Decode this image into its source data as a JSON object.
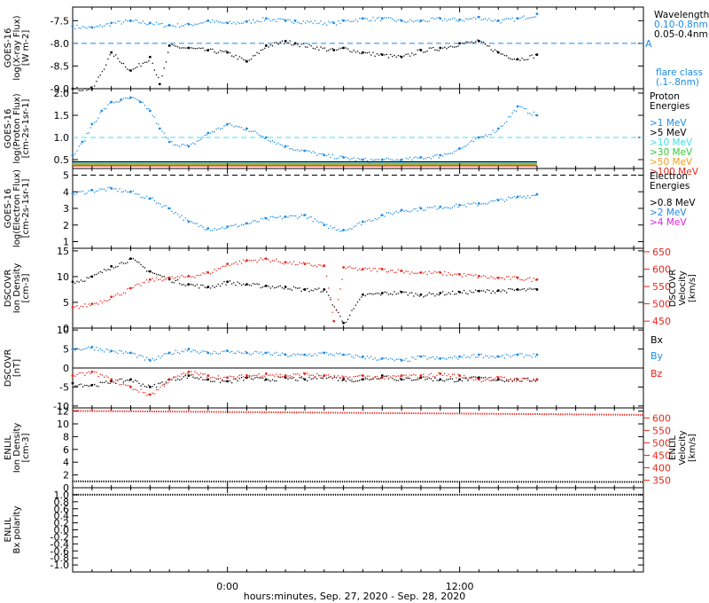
{
  "colors": {
    "black": "#000000",
    "blue": "#1c8be6",
    "lightblue": "#2bb3f0",
    "cyan": "#40e0e8",
    "green": "#37c837",
    "orange": "#f0a020",
    "red": "#e8261c",
    "magenta": "#e020e0",
    "dashed_ref": "#1c8be6"
  },
  "footer": {
    "xlabel": "hours:minutes, Sep. 27, 2020 - Sep. 28, 2020"
  },
  "x_axis": {
    "ticks": [
      "0:00",
      "12:00"
    ],
    "tick_hours": [
      0,
      12
    ],
    "range_hours": [
      -8.0,
      21.5
    ]
  },
  "chart_data": [
    {
      "id": "xray",
      "type": "scatter",
      "ylabel_lines": [
        "GOES-16",
        "log(X-ray Flux)",
        "[W m-2]"
      ],
      "ylim": [
        -9.0,
        -7.2
      ],
      "yticks": [
        -9.0,
        -8.5,
        -8.0,
        -7.5
      ],
      "ytick_labels": [
        "-9.0",
        "-8.5",
        "-8.0",
        "-7.5"
      ],
      "reference_line": {
        "y": -8.0,
        "label": "A"
      },
      "legend": {
        "title": "Wavelength",
        "items": [
          {
            "text": "0.10-0.8nm",
            "color": "blue"
          },
          {
            "text": "0.05-0.4nm",
            "color": "black"
          }
        ],
        "extra": [
          "flare class",
          "(.1-.8nm)"
        ]
      },
      "series": [
        {
          "name": "0.10-0.8nm",
          "color": "blue",
          "style": "dots",
          "x": [
            -8,
            -7,
            -6,
            -5,
            -4,
            -3,
            -2,
            -1,
            0,
            1,
            2,
            3,
            3.5,
            5.5,
            6,
            7,
            8,
            9,
            10,
            11,
            12,
            13,
            14,
            15,
            16
          ],
          "y": [
            -7.62,
            -7.65,
            -7.55,
            -7.5,
            -7.55,
            -7.6,
            -7.58,
            -7.5,
            -7.55,
            -7.52,
            -7.45,
            -7.5,
            -7.5,
            -7.55,
            -7.5,
            -7.45,
            -7.45,
            -7.5,
            -7.5,
            -7.45,
            -7.48,
            -7.42,
            -7.5,
            -7.45,
            -7.35
          ]
        },
        {
          "name": "0.05-0.4nm",
          "color": "black",
          "style": "dots",
          "x": [
            -8,
            -7,
            -6,
            -5,
            -4,
            -3.5,
            -3,
            -2,
            -1,
            0,
            1,
            2,
            3,
            3.5,
            5.5,
            6,
            7,
            8,
            9,
            10,
            11,
            12,
            13,
            14,
            15,
            16
          ],
          "y": [
            -9.0,
            -9.0,
            -8.2,
            -8.6,
            -8.3,
            -8.9,
            -8.05,
            -8.1,
            -8.15,
            -8.2,
            -8.4,
            -8.05,
            -7.95,
            -8.0,
            -8.15,
            -8.1,
            -8.2,
            -8.25,
            -8.3,
            -8.15,
            -8.1,
            -8.0,
            -7.95,
            -8.2,
            -8.35,
            -8.25
          ]
        }
      ]
    },
    {
      "id": "proton",
      "type": "scatter",
      "ylabel_lines": [
        "GOES-16",
        "log(Proton Flux)",
        "[cm-2s-1sr-1]"
      ],
      "ylim": [
        0.3,
        2.1
      ],
      "yticks": [
        0.5,
        1.0,
        1.5,
        2.0
      ],
      "ytick_labels": [
        "0.5",
        "1.0",
        "1.5",
        "2.0"
      ],
      "reference_line": {
        "y": 1.0,
        "label": ""
      },
      "legend": {
        "title_lines": [
          "Proton",
          "Energies"
        ],
        "items": [
          {
            "text": ">1 MeV",
            "color": "blue"
          },
          {
            "text": ">5 MeV",
            "color": "black"
          },
          {
            "text": ">10 MeV",
            "color": "cyan"
          },
          {
            "text": ">30 MeV",
            "color": "green"
          },
          {
            "text": ">50 MeV",
            "color": "orange"
          },
          {
            "text": ">100 MeV",
            "color": "red"
          }
        ]
      },
      "series": [
        {
          "name": ">1 MeV",
          "color": "blue",
          "style": "dots",
          "x": [
            -8,
            -7.5,
            -7,
            -6.5,
            -6,
            -5.5,
            -5,
            -4.5,
            -4,
            -3.5,
            -3,
            -2,
            -1,
            0,
            1,
            2,
            3,
            4,
            5,
            6,
            7,
            8,
            9,
            10,
            11,
            12,
            13,
            14,
            15,
            16
          ],
          "y": [
            0.6,
            0.9,
            1.3,
            1.6,
            1.8,
            1.85,
            1.9,
            1.8,
            1.6,
            1.2,
            0.9,
            0.8,
            1.1,
            1.3,
            1.2,
            1.0,
            0.8,
            0.7,
            0.6,
            0.55,
            0.5,
            0.5,
            0.5,
            0.55,
            0.6,
            0.75,
            1.0,
            1.2,
            1.7,
            1.5
          ]
        },
        {
          "name": ">5 MeV",
          "color": "black",
          "style": "line",
          "x": [
            -8,
            16
          ],
          "y": [
            0.45,
            0.45
          ]
        },
        {
          "name": ">10 MeV",
          "color": "cyan",
          "style": "line",
          "x": [
            -8,
            16
          ],
          "y": [
            0.42,
            0.42
          ]
        },
        {
          "name": ">30 MeV",
          "color": "green",
          "style": "line",
          "x": [
            -8,
            16
          ],
          "y": [
            0.4,
            0.4
          ]
        },
        {
          "name": ">50 MeV",
          "color": "orange",
          "style": "line",
          "x": [
            -8,
            16
          ],
          "y": [
            0.38,
            0.38
          ]
        },
        {
          "name": ">100 MeV",
          "color": "red",
          "style": "line",
          "x": [
            -8,
            16
          ],
          "y": [
            0.36,
            0.36
          ]
        }
      ]
    },
    {
      "id": "electron",
      "type": "scatter",
      "ylabel_lines": [
        "GOES-16",
        "log(Electron Flux)",
        "[cm-2s-1sr-1]"
      ],
      "ylim": [
        0.6,
        5.4
      ],
      "yticks": [
        1,
        2,
        3,
        4,
        5
      ],
      "ytick_labels": [
        "1",
        "2",
        "3",
        "4",
        "5"
      ],
      "reference_line": {
        "y": 5.0,
        "label": ""
      },
      "legend": {
        "title_lines": [
          "Electron",
          "Energies"
        ],
        "items": [
          {
            "text": ">0.8 MeV",
            "color": "black"
          },
          {
            "text": ">2 MeV",
            "color": "blue"
          },
          {
            "text": ">4 MeV",
            "color": "magenta"
          }
        ]
      },
      "series": [
        {
          "name": ">2 MeV",
          "color": "blue",
          "style": "dots",
          "x": [
            -8,
            -7,
            -6,
            -5,
            -4,
            -3,
            -2,
            -1,
            0,
            1,
            2,
            3,
            4,
            5,
            6,
            7,
            8,
            9,
            10,
            11,
            12,
            13,
            14,
            15,
            16
          ],
          "y": [
            3.9,
            4.1,
            4.2,
            4.0,
            3.6,
            3.0,
            2.2,
            1.8,
            1.9,
            2.1,
            2.4,
            2.5,
            2.6,
            2.0,
            1.7,
            2.2,
            2.6,
            2.9,
            3.0,
            3.1,
            3.2,
            3.3,
            3.5,
            3.7,
            3.85
          ]
        }
      ]
    },
    {
      "id": "dscovr_density",
      "type": "scatter",
      "ylabel_lines": [
        "DSCOVR",
        "Ion Density",
        "[cm-3]"
      ],
      "ylim": [
        0,
        15.5
      ],
      "yticks": [
        0,
        5,
        10,
        15
      ],
      "ytick_labels": [
        "0",
        "5",
        "10",
        "15"
      ],
      "right_axis": {
        "label_lines": [
          "DSCOVR",
          "Velocity",
          "[km/s]"
        ],
        "ylim": [
          430,
          660
        ],
        "yticks": [
          450,
          500,
          550,
          600,
          650
        ],
        "ytick_labels": [
          "450",
          "500",
          "550",
          "600",
          "650"
        ]
      },
      "series": [
        {
          "name": "Ion Density",
          "color": "black",
          "style": "dots",
          "x": [
            -8,
            -7,
            -6,
            -5,
            -4,
            -3,
            -2,
            -1,
            0,
            1,
            2,
            3,
            4,
            5,
            6,
            7,
            8,
            9,
            10,
            11,
            12,
            13,
            14,
            15,
            16
          ],
          "y": [
            9,
            10,
            12,
            13.5,
            11,
            9.5,
            8.5,
            8,
            9,
            8.5,
            8.2,
            8,
            7.5,
            7.5,
            1,
            6.5,
            6.8,
            7,
            6.5,
            6.8,
            7,
            7.2,
            7.3,
            7.5,
            7.5
          ]
        },
        {
          "name": "Velocity",
          "color": "red",
          "style": "dots",
          "axis": "right",
          "x": [
            -8,
            -7,
            -6,
            -5,
            -4,
            -3,
            -2,
            -1,
            0,
            1,
            2,
            3,
            4,
            5,
            5.5,
            6,
            7,
            8,
            9,
            10,
            11,
            12,
            13,
            14,
            15,
            16
          ],
          "y": [
            490,
            500,
            520,
            545,
            570,
            575,
            580,
            590,
            615,
            625,
            630,
            620,
            615,
            610,
            450,
            605,
            600,
            600,
            595,
            590,
            590,
            585,
            580,
            575,
            575,
            570
          ]
        }
      ]
    },
    {
      "id": "dscovr_b",
      "type": "scatter",
      "ylabel_lines": [
        "DSCOVR",
        "[nT]"
      ],
      "ylim": [
        -10.5,
        10.5
      ],
      "yticks": [
        -10,
        -5,
        0,
        5,
        10
      ],
      "ytick_labels": [
        "-10",
        "-5",
        "0",
        "5",
        "10"
      ],
      "zero_line": true,
      "legend_labels": [
        {
          "text": "Bx",
          "color": "black"
        },
        {
          "text": "By",
          "color": "blue"
        },
        {
          "text": "Bz",
          "color": "red"
        }
      ],
      "series": [
        {
          "name": "Bx",
          "color": "black",
          "style": "dots",
          "x": [
            -8,
            -7,
            -6,
            -5,
            -4,
            -3,
            -2,
            -1,
            0,
            1,
            2,
            3,
            4,
            5,
            6,
            7,
            8,
            9,
            10,
            11,
            12,
            13,
            14,
            15,
            16
          ],
          "y": [
            -4,
            -4.5,
            -3.5,
            -3,
            -5,
            -3,
            -2,
            -3,
            -3.5,
            -2.5,
            -3,
            -2.5,
            -3,
            -2,
            -3,
            -3,
            -2,
            -3,
            -2.5,
            -3,
            -3,
            -2.5,
            -3,
            -3,
            -3
          ]
        },
        {
          "name": "By",
          "color": "blue",
          "style": "dots",
          "x": [
            -8,
            -7,
            -6,
            -5,
            -4,
            -3,
            -2,
            -1,
            0,
            1,
            2,
            3,
            4,
            5,
            6,
            7,
            8,
            9,
            10,
            11,
            12,
            13,
            14,
            15,
            16
          ],
          "y": [
            5,
            5.5,
            4.5,
            4,
            2,
            4,
            5,
            4,
            4.5,
            4,
            4,
            3.5,
            3.5,
            4,
            3.5,
            3,
            2.5,
            2,
            3,
            2.5,
            3,
            3.5,
            3,
            3.5,
            3.5
          ]
        },
        {
          "name": "Bz",
          "color": "red",
          "style": "dots",
          "x": [
            -8,
            -7,
            -6,
            -5,
            -4,
            -3,
            -2,
            -1,
            0,
            1,
            2,
            3,
            4,
            5,
            6,
            7,
            8,
            9,
            10,
            11,
            12,
            13,
            14,
            15,
            16
          ],
          "y": [
            -2,
            -1,
            -3,
            -5,
            -7,
            -3,
            -1,
            -2,
            -2.5,
            -2,
            -1.5,
            -2,
            -1.5,
            -2,
            -2.5,
            -2,
            -2.5,
            -2,
            -2,
            -1.5,
            -2,
            -3,
            -2.5,
            -3,
            -3
          ]
        }
      ]
    },
    {
      "id": "enlil_density",
      "type": "line",
      "ylabel_lines": [
        "ENLIL",
        "Ion Density",
        "[cm-3]"
      ],
      "ylim": [
        0,
        12.5
      ],
      "yticks": [
        0,
        2,
        4,
        6,
        8,
        10,
        12
      ],
      "ytick_labels": [
        "0",
        "2",
        "4",
        "6",
        "8",
        "10",
        "12"
      ],
      "right_axis": {
        "label_lines": [
          "ENLIL",
          "Velocity",
          "[km/s]"
        ],
        "ylim": [
          320,
          640
        ],
        "yticks": [
          350,
          400,
          450,
          500,
          550,
          600
        ],
        "ytick_labels": [
          "350",
          "400",
          "450",
          "500",
          "550",
          "600"
        ]
      },
      "series": [
        {
          "name": "Ion Density",
          "color": "black",
          "style": "line",
          "x": [
            -8,
            21.5
          ],
          "y": [
            1.0,
            0.9
          ]
        },
        {
          "name": "Velocity",
          "color": "red",
          "style": "line",
          "axis": "right",
          "x": [
            -8,
            21.5
          ],
          "y": [
            628,
            612
          ]
        }
      ]
    },
    {
      "id": "enlil_bx",
      "type": "line",
      "ylabel_lines": [
        "ENLIL",
        "Bx polarity"
      ],
      "ylim": [
        -1.2,
        1.2
      ],
      "yticks": [
        -1.0,
        -0.8,
        -0.6,
        -0.4,
        -0.2,
        0.0,
        0.2,
        0.4,
        0.6,
        0.8,
        1.0
      ],
      "ytick_labels": [
        "-1.0",
        "-0.8",
        "-0.6",
        "-0.4",
        "-0.2",
        "0.0",
        "0.2",
        "0.4",
        "0.6",
        "0.8",
        "1.0"
      ],
      "series": [
        {
          "name": "Bx polarity",
          "color": "black",
          "style": "line",
          "x": [
            -8,
            21.5
          ],
          "y": [
            1.0,
            1.0
          ]
        }
      ]
    }
  ]
}
